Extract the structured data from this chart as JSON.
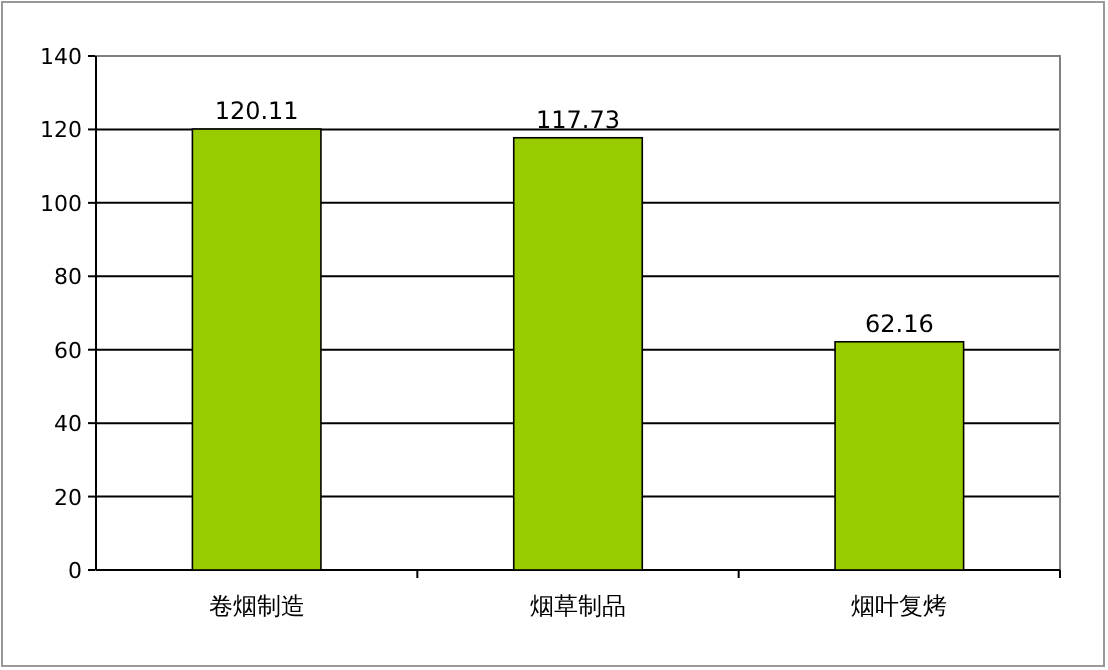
{
  "chart_data": {
    "type": "bar",
    "categories": [
      "卷烟制造",
      "烟草制品",
      "烟叶复烤"
    ],
    "values": [
      120.11,
      117.73,
      62.16
    ],
    "color": "#99cc00",
    "ylim": [
      0,
      140
    ],
    "yticks": [
      0,
      20,
      40,
      60,
      80,
      100,
      120,
      140
    ],
    "grid": "y",
    "data_labels": true
  }
}
